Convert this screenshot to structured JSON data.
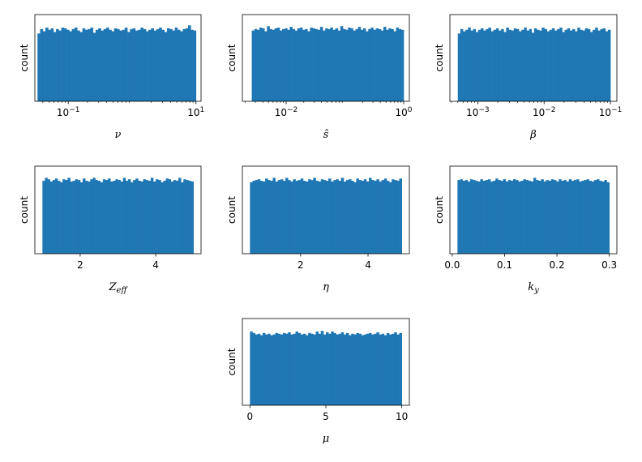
{
  "colors": {
    "bar": "#1f77b4",
    "frame": "#000000"
  },
  "chart_data": [
    {
      "type": "bar",
      "xlabel": "ν",
      "ylabel": "count",
      "xscale": "log",
      "xlim": [
        0.03,
        12
      ],
      "range": [
        0.033,
        10
      ],
      "bins": 60,
      "ticks": [
        {
          "v": 0.1,
          "b": "10",
          "e": "−1"
        },
        {
          "v": 10,
          "b": "10",
          "e": "1"
        }
      ],
      "heights": [
        0.92,
        0.98,
        0.95,
        1.0,
        0.97,
        0.99,
        0.94,
        0.98,
        0.96,
        1.0,
        0.99,
        0.97,
        0.95,
        0.98,
        1.0,
        0.96,
        0.94,
        0.99,
        0.97,
        0.98,
        1.0,
        0.93,
        0.97,
        0.99,
        0.96,
        0.98,
        1.0,
        0.97,
        0.95,
        0.99,
        0.98,
        0.96,
        0.97,
        1.0,
        0.94,
        0.98,
        0.99,
        0.96,
        0.97,
        1.0,
        0.98,
        0.95,
        0.97,
        0.99,
        0.96,
        0.98,
        1.0,
        0.97,
        0.94,
        0.99,
        0.98,
        0.96,
        1.0,
        0.97,
        0.95,
        0.98,
        0.99,
        1.03,
        0.97,
        0.96
      ]
    },
    {
      "type": "bar",
      "xlabel": "ŝ",
      "ylabel": "count",
      "xscale": "log",
      "xlim": [
        0.0018,
        1.25
      ],
      "range": [
        0.0026,
        1.0
      ],
      "bins": 60,
      "ticks": [
        {
          "v": 0.01,
          "b": "10",
          "e": "−2"
        },
        {
          "v": 1,
          "b": "10",
          "e": "0"
        }
      ],
      "heights": [
        0.96,
        0.98,
        0.97,
        1.0,
        0.99,
        0.95,
        1.02,
        0.98,
        0.97,
        0.99,
        1.0,
        0.96,
        0.98,
        0.99,
        0.97,
        1.01,
        0.98,
        0.96,
        0.99,
        1.0,
        0.97,
        0.98,
        0.95,
        1.0,
        0.99,
        0.98,
        0.97,
        1.01,
        0.96,
        0.99,
        0.98,
        1.0,
        0.97,
        0.99,
        0.96,
        1.02,
        0.98,
        0.97,
        1.0,
        0.99,
        0.96,
        0.98,
        1.01,
        0.97,
        0.99,
        0.95,
        0.98,
        1.0,
        0.97,
        0.99,
        0.98,
        0.96,
        1.01,
        0.97,
        0.99,
        0.98,
        0.95,
        1.0,
        0.98,
        0.97
      ]
    },
    {
      "type": "bar",
      "xlabel": "β",
      "ylabel": "count",
      "xscale": "log",
      "xlim": [
        0.00038,
        0.125
      ],
      "range": [
        0.0005,
        0.1
      ],
      "bins": 60,
      "ticks": [
        {
          "v": 0.001,
          "b": "10",
          "e": "−3"
        },
        {
          "v": 0.01,
          "b": "10",
          "e": "−2"
        },
        {
          "v": 0.1,
          "b": "10",
          "e": "−1"
        }
      ],
      "heights": [
        0.92,
        0.98,
        0.95,
        0.97,
        1.0,
        0.96,
        0.98,
        0.94,
        0.97,
        0.99,
        0.96,
        0.98,
        1.0,
        0.95,
        0.97,
        0.99,
        0.96,
        0.98,
        0.94,
        1.0,
        0.97,
        0.96,
        0.99,
        0.98,
        0.95,
        0.97,
        1.0,
        0.96,
        0.98,
        0.93,
        0.99,
        0.97,
        0.96,
        1.0,
        0.98,
        0.95,
        0.97,
        0.99,
        0.96,
        0.98,
        1.0,
        0.94,
        0.97,
        0.99,
        0.96,
        0.98,
        0.95,
        1.0,
        0.97,
        0.96,
        0.99,
        0.98,
        0.94,
        0.97,
        1.0,
        0.96,
        0.98,
        0.99,
        0.95,
        0.97
      ]
    },
    {
      "type": "bar",
      "xlabel": "Z_eff",
      "ylabel": "count",
      "xscale": "linear",
      "xlim": [
        0.8,
        5.2
      ],
      "range": [
        1.0,
        5.0
      ],
      "bins": 60,
      "ticks": [
        {
          "v": 2,
          "t": "2"
        },
        {
          "v": 4,
          "t": "4"
        }
      ],
      "heights": [
        0.98,
        1.02,
        1.0,
        0.97,
        0.99,
        1.01,
        0.98,
        0.96,
        1.0,
        0.99,
        1.02,
        0.97,
        0.98,
        1.0,
        0.99,
        0.96,
        1.01,
        0.98,
        0.97,
        1.0,
        1.02,
        0.99,
        0.98,
        0.96,
        1.0,
        0.99,
        1.01,
        0.97,
        0.98,
        1.0,
        0.99,
        0.97,
        1.02,
        0.98,
        1.0,
        0.96,
        0.99,
        1.01,
        0.98,
        0.97,
        1.0,
        0.99,
        0.98,
        1.02,
        0.97,
        1.0,
        0.99,
        0.96,
        0.98,
        1.01,
        1.0,
        0.97,
        0.99,
        0.98,
        1.02,
        0.96,
        1.0,
        0.99,
        0.98,
        0.97
      ]
    },
    {
      "type": "bar",
      "xlabel": "η",
      "ylabel": "count",
      "xscale": "linear",
      "xlim": [
        0.275,
        5.225
      ],
      "range": [
        0.5,
        5.0
      ],
      "bins": 60,
      "ticks": [
        {
          "v": 2,
          "t": "2"
        },
        {
          "v": 4,
          "t": "4"
        }
      ],
      "heights": [
        0.96,
        0.98,
        0.99,
        1.0,
        0.98,
        0.97,
        1.01,
        0.99,
        0.98,
        1.02,
        0.97,
        0.99,
        1.0,
        0.98,
        1.02,
        0.99,
        0.97,
        1.0,
        0.98,
        0.99,
        1.01,
        0.98,
        0.97,
        1.0,
        0.99,
        1.02,
        0.98,
        0.97,
        1.0,
        0.99,
        0.98,
        1.01,
        0.97,
        0.99,
        1.0,
        0.98,
        1.02,
        0.97,
        0.99,
        1.0,
        0.98,
        0.96,
        1.01,
        0.99,
        0.98,
        1.0,
        0.97,
        1.02,
        0.99,
        0.98,
        1.0,
        0.97,
        0.99,
        1.01,
        0.98,
        0.96,
        1.0,
        0.99,
        0.98,
        1.01
      ]
    },
    {
      "type": "bar",
      "xlabel": "k_y",
      "ylabel": "count",
      "xscale": "linear",
      "xlim": [
        -0.0045,
        0.3145
      ],
      "range": [
        0.01,
        0.3
      ],
      "bins": 60,
      "ticks": [
        {
          "v": 0.0,
          "t": "0.0"
        },
        {
          "v": 0.1,
          "t": "0.1"
        },
        {
          "v": 0.2,
          "t": "0.2"
        },
        {
          "v": 0.3,
          "t": "0.3"
        }
      ],
      "heights": [
        0.99,
        1.0,
        0.98,
        0.99,
        0.97,
        1.0,
        0.99,
        0.98,
        0.97,
        1.0,
        0.98,
        0.99,
        1.0,
        0.97,
        0.98,
        1.01,
        0.99,
        0.98,
        1.0,
        0.97,
        0.99,
        0.98,
        1.0,
        0.99,
        0.97,
        0.98,
        1.0,
        0.99,
        0.98,
        0.97,
        1.02,
        0.99,
        0.98,
        1.0,
        0.97,
        0.99,
        0.98,
        1.0,
        0.99,
        0.97,
        1.0,
        0.98,
        0.99,
        0.97,
        1.0,
        0.98,
        0.99,
        1.0,
        0.97,
        0.98,
        0.99,
        1.0,
        0.98,
        0.97,
        0.99,
        1.0,
        0.98,
        0.97,
        0.99,
        0.96
      ]
    },
    {
      "type": "bar",
      "xlabel": "μ",
      "ylabel": "count",
      "xscale": "linear",
      "xlim": [
        -0.5,
        10.5
      ],
      "range": [
        0.0,
        10.0
      ],
      "bins": 60,
      "ticks": [
        {
          "v": 0,
          "t": "0"
        },
        {
          "v": 5,
          "t": "5"
        },
        {
          "v": 10,
          "t": "10"
        }
      ],
      "heights": [
        1.0,
        0.98,
        0.96,
        0.97,
        0.95,
        0.98,
        0.96,
        0.97,
        0.95,
        0.96,
        0.98,
        0.97,
        0.96,
        0.98,
        0.97,
        0.99,
        0.96,
        0.97,
        1.0,
        0.98,
        0.96,
        0.97,
        0.95,
        0.98,
        0.97,
        0.96,
        1.0,
        0.97,
        1.01,
        0.96,
        0.99,
        0.97,
        1.0,
        0.98,
        0.96,
        0.97,
        0.99,
        0.96,
        0.98,
        0.95,
        0.97,
        0.96,
        0.98,
        0.97,
        0.95,
        0.96,
        0.97,
        0.98,
        0.96,
        0.97,
        0.99,
        0.96,
        0.97,
        0.95,
        0.98,
        0.96,
        0.97,
        0.99,
        0.96,
        0.98
      ]
    }
  ]
}
